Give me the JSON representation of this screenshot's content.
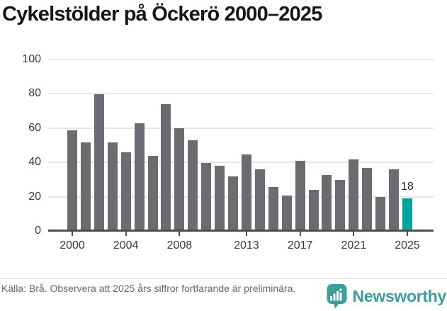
{
  "chart_data": {
    "type": "bar",
    "title": "Cykelstölder på Öckerö 2000–2025",
    "xlabel": "",
    "ylabel": "",
    "years": [
      2000,
      2001,
      2002,
      2003,
      2004,
      2005,
      2006,
      2007,
      2008,
      2009,
      2010,
      2011,
      2012,
      2013,
      2014,
      2015,
      2016,
      2017,
      2018,
      2019,
      2020,
      2021,
      2022,
      2023,
      2024,
      2025
    ],
    "values": [
      58,
      51,
      79,
      51,
      45,
      62,
      43,
      73,
      59,
      52,
      39,
      37,
      31,
      44,
      35,
      25,
      20,
      40,
      23,
      32,
      29,
      41,
      36,
      19,
      35,
      18
    ],
    "ylim": [
      0,
      100
    ],
    "yticks": [
      0,
      20,
      40,
      60,
      80,
      100
    ],
    "xticks": [
      2000,
      2004,
      2008,
      2013,
      2017,
      2021,
      2025
    ],
    "grid": "horizontal",
    "highlight_year": 2025,
    "annotation": {
      "year": 2025,
      "text": "18"
    },
    "colors": {
      "bar": "#6c6b70",
      "highlight": "#00a49c",
      "gridline": "#e6e6e6",
      "axis": "#4d4d4d",
      "tick_label": "#3a3a3a",
      "annotation": "#242424"
    }
  },
  "footer": {
    "source": "Källa: Brå. Observera att 2025 års siffror fortfarande är preliminära.",
    "brand": "Newsworthy",
    "brand_color": "#3a9e99"
  }
}
